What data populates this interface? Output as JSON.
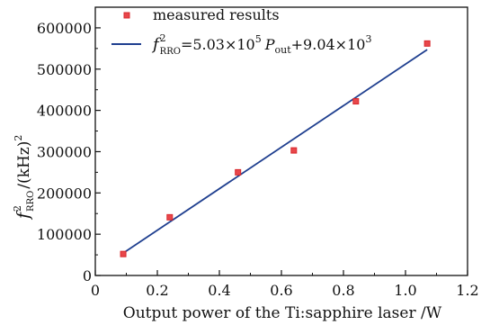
{
  "colors": {
    "marker_fill": "#e8474b",
    "marker_edge": "#d9282c",
    "fit_line": "#1f3f8f",
    "axis": "#111111"
  },
  "chart_data": {
    "type": "scatter",
    "xlabel": "Output power of the Ti:sapphire laser /W",
    "ylabel": {
      "base": "f",
      "sup": "2",
      "sub": "RRO",
      "rest": "/(kHz)",
      "rest_sup": "2"
    },
    "xlim": [
      0,
      1.2
    ],
    "ylim": [
      0,
      650000
    ],
    "x_ticks": [
      0,
      0.2,
      0.4,
      0.6,
      0.8,
      1.0,
      1.2
    ],
    "x_tick_labels": [
      "0",
      "0.2",
      "0.4",
      "0.6",
      "0.8",
      "1.0",
      "1.2"
    ],
    "y_ticks": [
      0,
      100000,
      200000,
      300000,
      400000,
      500000,
      600000
    ],
    "y_tick_labels": [
      "0",
      "100000",
      "200000",
      "300000",
      "400000",
      "500000",
      "600000"
    ],
    "grid": false,
    "legend_placement": "top-left",
    "series": [
      {
        "name": "measured results",
        "marker": "square",
        "x": [
          0.09,
          0.24,
          0.46,
          0.64,
          0.84,
          1.07
        ],
        "y": [
          52000,
          141000,
          250000,
          303000,
          422000,
          562000
        ]
      },
      {
        "kind": "line",
        "name": {
          "f": "f",
          "f_sup": "2",
          "f_sub": "RRO",
          "eq": "=5.03×10",
          "exp1": "5",
          "p": "P",
          "p_sub": "out",
          "tail": "+9.04×10",
          "exp2": "3"
        },
        "slope": 503000,
        "intercept": 9040,
        "x": [
          0.09,
          1.07
        ]
      }
    ]
  }
}
